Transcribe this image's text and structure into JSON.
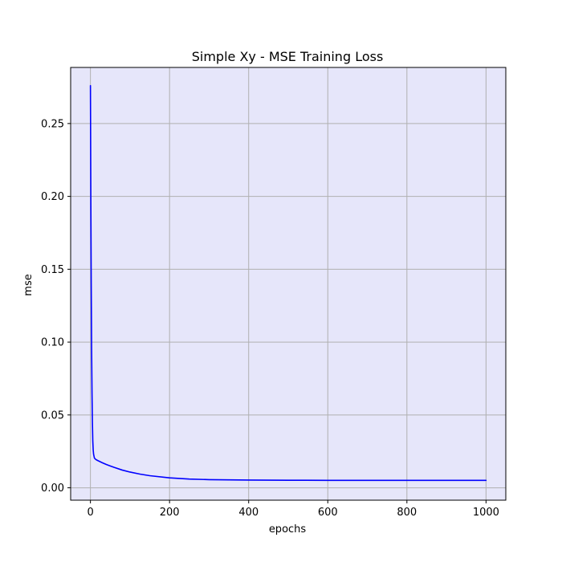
{
  "chart_data": {
    "type": "line",
    "title": "Simple Xy - MSE Training Loss",
    "xlabel": "epochs",
    "ylabel": "mse",
    "xlim": [
      -50,
      1050
    ],
    "ylim": [
      -0.0085,
      0.2885
    ],
    "xticks": [
      0,
      200,
      400,
      600,
      800,
      1000
    ],
    "yticks": [
      0.0,
      0.05,
      0.1,
      0.15,
      0.2,
      0.25
    ],
    "xtick_labels": [
      "0",
      "200",
      "400",
      "600",
      "800",
      "1000"
    ],
    "ytick_labels": [
      "0.00",
      "0.05",
      "0.10",
      "0.15",
      "0.20",
      "0.25"
    ],
    "grid": true,
    "legend": "none",
    "background_color": "#e6e6fa",
    "grid_color": "#b0b0b0",
    "series": [
      {
        "color": "#0000ff",
        "x": [
          0,
          1,
          2,
          3,
          4,
          5,
          6,
          7,
          8,
          10,
          12,
          15,
          20,
          30,
          40,
          50,
          60,
          80,
          100,
          125,
          150,
          200,
          250,
          300,
          400,
          500,
          600,
          700,
          800,
          900,
          1000
        ],
        "y": [
          0.276,
          0.2,
          0.14,
          0.095,
          0.065,
          0.045,
          0.032,
          0.026,
          0.023,
          0.0205,
          0.0198,
          0.0192,
          0.0185,
          0.0172,
          0.016,
          0.015,
          0.014,
          0.0122,
          0.0108,
          0.0094,
          0.0083,
          0.0068,
          0.006,
          0.0056,
          0.0053,
          0.0052,
          0.0051,
          0.0051,
          0.0051,
          0.0051,
          0.0051
        ]
      }
    ]
  }
}
